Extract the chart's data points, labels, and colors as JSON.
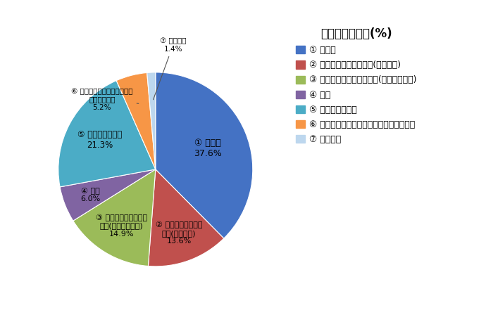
{
  "title": "可燃ごみの内訳(%)",
  "legend_labels": [
    "① 生ごみ",
    "② リサイクルできる紙類(雑がみ等)",
    "③ リサイクルできない紙類(ティッシュ等)",
    "④ 布類",
    "⑤ その他可燃物類",
    "⑥ プラスチック製容器包装・ペットボトル",
    "⑦ 不燃物類"
  ],
  "values": [
    37.6,
    13.6,
    14.9,
    6.0,
    21.3,
    5.2,
    1.4
  ],
  "colors": [
    "#4472C4",
    "#C0504D",
    "#9BBB59",
    "#8064A2",
    "#4BACC6",
    "#F79646",
    "#BDD7EE"
  ],
  "background_color": "#FFFFFF",
  "startangle": 90,
  "title_fontsize": 12,
  "label_fontsize": 8.5,
  "legend_fontsize": 9
}
